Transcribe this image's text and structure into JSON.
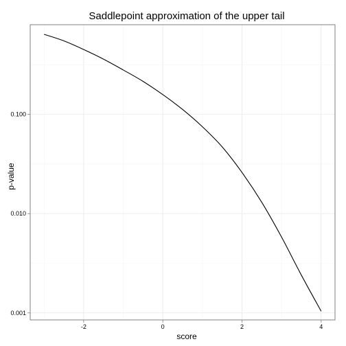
{
  "chart_data": {
    "type": "line",
    "title": "Saddlepoint approximation of the upper tail",
    "xlabel": "score",
    "ylabel": "p-value",
    "x_scale": "linear",
    "y_scale": "log10",
    "xlim": [
      -3.35,
      4.35
    ],
    "ylim": [
      0.00085,
      0.8
    ],
    "x_ticks": [
      -2,
      0,
      2,
      4
    ],
    "x_tick_labels": [
      "-2",
      "0",
      "2",
      "4"
    ],
    "y_ticks": [
      0.001,
      0.01,
      0.1
    ],
    "y_tick_labels": [
      "0.001",
      "0.010",
      "0.100"
    ],
    "grid": true,
    "legend": "none",
    "series": [
      {
        "x": [
          -3.0,
          -2.5,
          -2.0,
          -1.5,
          -1.0,
          -0.5,
          0.0,
          0.5,
          1.0,
          1.5,
          2.0,
          2.5,
          3.0,
          3.5,
          4.0
        ],
        "y": [
          0.64,
          0.55,
          0.45,
          0.36,
          0.28,
          0.215,
          0.158,
          0.112,
          0.075,
          0.047,
          0.026,
          0.013,
          0.0058,
          0.0024,
          0.00104
        ]
      }
    ],
    "colors": {
      "line": "#000000",
      "grid_major": "#ebebeb",
      "grid_minor": "#f5f5f5",
      "panel_border": "#7f7f7f"
    }
  }
}
